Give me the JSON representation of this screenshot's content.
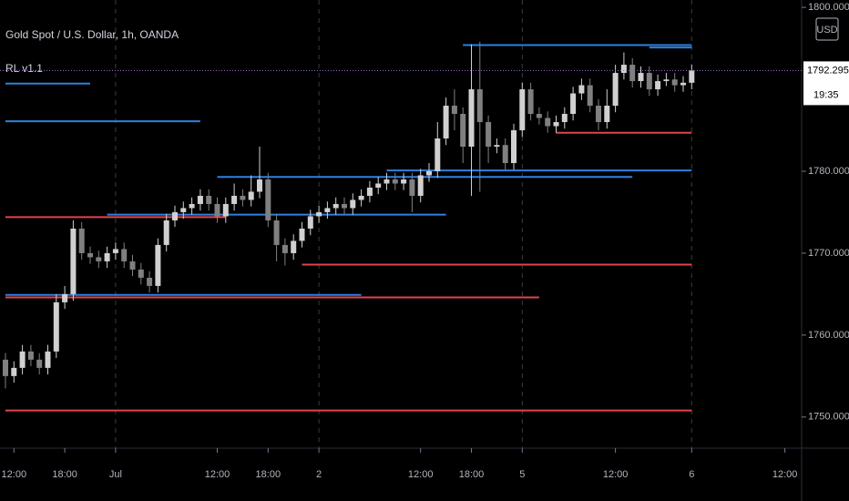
{
  "chart_data": {
    "type": "candlestick",
    "title": "Gold Spot / U.S. Dollar, 1h, OANDA",
    "indicator": "RL v1.1",
    "currency": "USD",
    "countdown": "19:35",
    "last_price": 1792.295,
    "last_price_color": "#9c6bd6",
    "up_color": "#d0d0d0",
    "down_color": "#808080",
    "categories": [
      null,
      "12:00",
      null,
      null,
      null,
      null,
      null,
      "18:00",
      null,
      null,
      null,
      null,
      null,
      "Jul",
      null,
      null,
      null,
      null,
      null,
      null,
      null,
      null,
      null,
      null,
      null,
      "12:00",
      null,
      null,
      null,
      null,
      null,
      "18:00",
      null,
      null,
      null,
      null,
      null,
      "2",
      null,
      null,
      null,
      null,
      null,
      null,
      null,
      null,
      null,
      null,
      null,
      "12:00",
      null,
      null,
      null,
      null,
      null,
      "18:00",
      null,
      null,
      null,
      null,
      null,
      "5",
      null,
      null,
      null,
      null,
      null,
      null,
      null,
      null,
      null,
      null,
      "12:00",
      null,
      null,
      null,
      null,
      null,
      null,
      null,
      null,
      "6",
      null,
      null,
      null,
      null,
      null,
      null,
      null,
      null,
      null,
      null,
      "12:00",
      null
    ],
    "open": [
      1757,
      1755,
      1756,
      1758,
      1757,
      1756,
      1758,
      1764,
      1765,
      1773,
      1770,
      1769.5,
      1769,
      1770,
      1770.5,
      1769,
      1768,
      1767,
      1766,
      1771,
      1774,
      1775,
      1775.5,
      1776,
      1777,
      1776,
      1774.5,
      1776,
      1777,
      1776.5,
      1777.5,
      1779,
      1774,
      1771,
      1770,
      1771.5,
      1773,
      1774.5,
      1775,
      1775.5,
      1776,
      1775.5,
      1776.5,
      1777,
      1778,
      1778.5,
      1779,
      1778.5,
      1779,
      1777,
      1779.5,
      1780,
      1784,
      1788,
      1787,
      1783,
      1790,
      1786,
      1783,
      1783.2,
      1781,
      1785,
      1790,
      1787,
      1786.5,
      1785.5,
      1786,
      1787,
      1789.5,
      1790.5,
      1788,
      1786,
      1788,
      1792,
      1793,
      1791,
      1792,
      1790,
      1791,
      1791.2,
      1790.5,
      1790.8,
      null,
      null,
      null,
      null,
      null,
      null,
      null,
      null,
      null,
      null,
      null,
      null
    ],
    "high": [
      1757.8,
      1756.8,
      1758.8,
      1758.8,
      1757.8,
      1758.8,
      1765,
      1766,
      1774,
      1773.8,
      1770.8,
      1770.3,
      1770.8,
      1771.3,
      1771.3,
      1769.8,
      1768.8,
      1767.8,
      1771.8,
      1774.8,
      1775.8,
      1776.3,
      1776.8,
      1777.8,
      1777.8,
      1776.8,
      1776.8,
      1778.5,
      1777.8,
      1779.5,
      1783,
      1779.8,
      1774.8,
      1771.8,
      1772.3,
      1773.8,
      1775.3,
      1775.8,
      1776.3,
      1776.8,
      1776.8,
      1777.3,
      1777.8,
      1778.8,
      1779.3,
      1779.8,
      1779.8,
      1779.8,
      1779.8,
      1780.3,
      1781,
      1786,
      1789,
      1790,
      1787.8,
      1795.5,
      1795.8,
      1786.8,
      1784,
      1784,
      1785.8,
      1790.8,
      1790.8,
      1787.8,
      1787.3,
      1786.8,
      1787.8,
      1790.3,
      1791.3,
      1791.3,
      1788.8,
      1790,
      1793,
      1794.5,
      1793.8,
      1792.8,
      1792.8,
      1791.8,
      1792,
      1792,
      1791.6,
      1793,
      null,
      null,
      null,
      null,
      null,
      null,
      null,
      null,
      null,
      null,
      null,
      null
    ],
    "low": [
      1753.5,
      1754.2,
      1755.2,
      1756.2,
      1755.2,
      1755.2,
      1757.2,
      1763.2,
      1764.2,
      1769.2,
      1768.7,
      1768.2,
      1768.2,
      1769.2,
      1768.2,
      1767.2,
      1766.2,
      1765.2,
      1765.2,
      1770.2,
      1773.2,
      1774.2,
      1774.7,
      1775.2,
      1775.2,
      1773.7,
      1773.7,
      1775.2,
      1775.7,
      1775.7,
      1776.7,
      1773.2,
      1769,
      1768.5,
      1769.2,
      1770.7,
      1772.2,
      1773.7,
      1774.2,
      1774.7,
      1774.7,
      1774.7,
      1775.7,
      1776.2,
      1777.2,
      1777.7,
      1777.7,
      1777.7,
      1775,
      1776.2,
      1778.7,
      1779.2,
      1783.2,
      1785,
      1781,
      1777,
      1777.5,
      1781,
      1782.2,
      1780.2,
      1780.2,
      1784.2,
      1786.2,
      1785.7,
      1784.7,
      1784.7,
      1785.2,
      1786.2,
      1788.7,
      1787.2,
      1785,
      1785.2,
      1787.2,
      1791.2,
      1790.2,
      1790.2,
      1789.2,
      1789.2,
      1790.4,
      1789.7,
      1789.7,
      1790,
      null,
      null,
      null,
      null,
      null,
      null,
      null,
      null,
      null,
      null,
      null,
      null
    ],
    "close": [
      1755,
      1756,
      1758,
      1757,
      1756,
      1758,
      1764,
      1765,
      1773,
      1770,
      1769.5,
      1769,
      1770,
      1770.5,
      1769,
      1768,
      1767,
      1766,
      1771,
      1774,
      1775,
      1775.5,
      1776,
      1777,
      1776,
      1774.5,
      1776,
      1777,
      1776.5,
      1777.5,
      1779,
      1774,
      1771,
      1770,
      1771.5,
      1773,
      1774.5,
      1775,
      1775.5,
      1776,
      1775.5,
      1776.5,
      1777,
      1778,
      1778.5,
      1779,
      1778.5,
      1779,
      1777,
      1779.5,
      1780,
      1784,
      1788,
      1787,
      1783,
      1790,
      1786,
      1783,
      1783.2,
      1781,
      1785,
      1790,
      1787,
      1786.5,
      1785.5,
      1786,
      1787,
      1789.5,
      1790.5,
      1788,
      1786,
      1788,
      1792,
      1793,
      1791,
      1792,
      1790,
      1791,
      1791.2,
      1790.5,
      1790.8,
      1792.3,
      null,
      null,
      null,
      null,
      null,
      null,
      null,
      null,
      null,
      null,
      null,
      null
    ],
    "levels": [
      {
        "color": "#2f7fe0",
        "value": 1795.4,
        "start": 54,
        "end": 81
      },
      {
        "color": "#2f7fe0",
        "value": 1795.1,
        "start": 76,
        "end": 81
      },
      {
        "color": "#2f7fe0",
        "value": 1790.7,
        "start": 0,
        "end": 10
      },
      {
        "color": "#2f7fe0",
        "value": 1786.1,
        "start": 0,
        "end": 23
      },
      {
        "color": "#2f7fe0",
        "value": 1780.1,
        "start": 45,
        "end": 81
      },
      {
        "color": "#2f7fe0",
        "value": 1779.3,
        "start": 25,
        "end": 74
      },
      {
        "color": "#2f7fe0",
        "value": 1774.7,
        "start": 12,
        "end": 52
      },
      {
        "color": "#2f7fe0",
        "value": 1764.9,
        "start": 0,
        "end": 42
      },
      {
        "color": "#e0454b",
        "value": 1784.7,
        "start": 65,
        "end": 81
      },
      {
        "color": "#e0454b",
        "value": 1774.4,
        "start": 0,
        "end": 26
      },
      {
        "color": "#e0454b",
        "value": 1768.6,
        "start": 35,
        "end": 81
      },
      {
        "color": "#e0454b",
        "value": 1764.6,
        "start": 0,
        "end": 63
      },
      {
        "color": "#e0454b",
        "value": 1750.8,
        "start": 0,
        "end": 81
      }
    ],
    "ylim": [
      1746.2,
      1800.9
    ],
    "yticks": [
      {
        "value": 1750,
        "label": "1750.000"
      },
      {
        "value": 1760,
        "label": "1760.000"
      },
      {
        "value": 1770,
        "label": "1770.000"
      },
      {
        "value": 1780,
        "label": "1780.000"
      },
      {
        "value": 1800,
        "label": "1800.000"
      }
    ]
  }
}
